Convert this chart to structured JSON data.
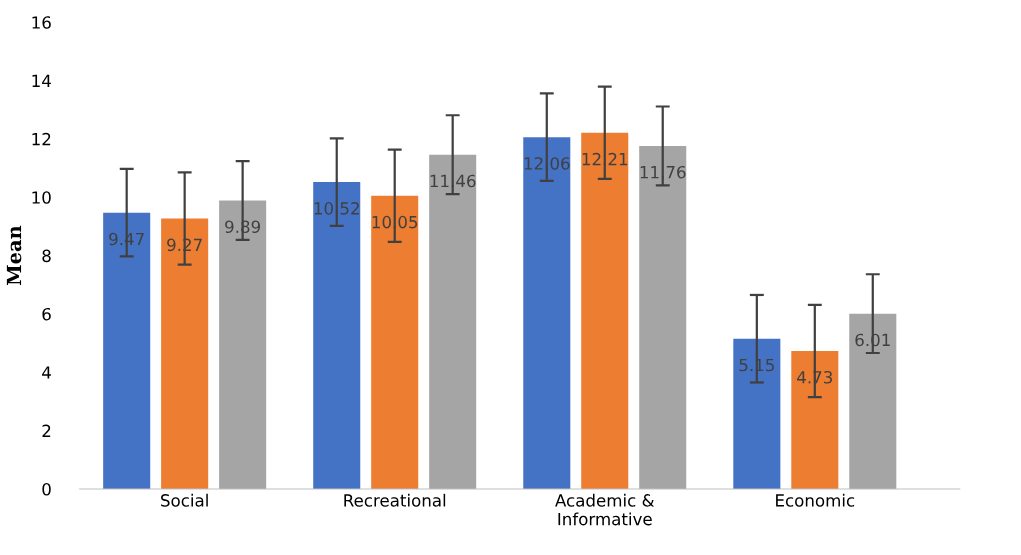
{
  "chart_data": {
    "type": "bar",
    "ylabel": "Mean",
    "categories": [
      "Social",
      "Recreational",
      "Academic &\nInformative",
      "Economic"
    ],
    "series": [
      {
        "color": "#4472c4",
        "values": [
          9.47,
          10.52,
          12.06,
          5.15
        ],
        "errors": [
          1.5,
          1.5,
          1.5,
          1.5
        ]
      },
      {
        "color": "#ed7d31",
        "values": [
          9.27,
          10.05,
          12.21,
          4.73
        ],
        "errors": [
          1.58,
          1.58,
          1.58,
          1.58
        ]
      },
      {
        "color": "#a5a5a5",
        "values": [
          9.89,
          11.46,
          11.76,
          6.01
        ],
        "errors": [
          1.35,
          1.35,
          1.35,
          1.35
        ]
      }
    ],
    "ylim": [
      0,
      16
    ],
    "yticks": [
      0,
      2,
      4,
      6,
      8,
      10,
      12,
      14,
      16
    ],
    "data_labels": true,
    "grid": false,
    "legend": false
  }
}
